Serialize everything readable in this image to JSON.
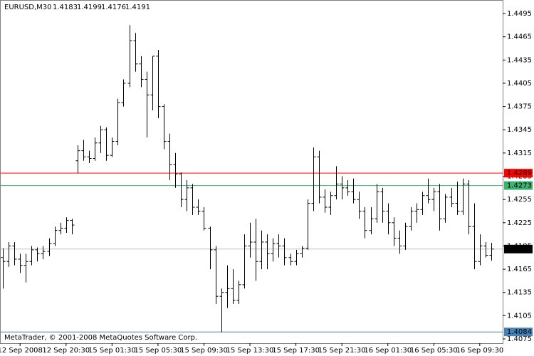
{
  "chart_data": {
    "type": "ohlc",
    "title": "EURUSD,M30",
    "footer": "MetaTrader, © 2001-2008 MetaQuotes Software Corp.",
    "bar_color": "#000000",
    "categories": [
      null,
      null,
      null,
      "12 Sep 2008",
      null,
      null,
      null,
      null,
      null,
      null,
      null,
      "12 Sep 20:30",
      null,
      null,
      null,
      null,
      null,
      null,
      null,
      "15 Sep 01:30",
      null,
      null,
      null,
      null,
      null,
      null,
      null,
      "15 Sep 05:30",
      null,
      null,
      null,
      null,
      null,
      null,
      null,
      "15 Sep 09:30",
      null,
      null,
      null,
      null,
      null,
      null,
      null,
      "15 Sep 13:30",
      null,
      null,
      null,
      null,
      null,
      null,
      null,
      "15 Sep 17:30",
      null,
      null,
      null,
      null,
      null,
      null,
      null,
      "15 Sep 21:30",
      null,
      null,
      null,
      null,
      null,
      null,
      null,
      "16 Sep 01:30",
      null,
      null,
      null,
      null,
      null,
      null,
      null,
      "16 Sep 05:30",
      null,
      null,
      null,
      null,
      null,
      null,
      null,
      "16 Sep 09:30",
      null,
      null
    ],
    "ohlc": [
      [
        1.418,
        1.4192,
        1.414,
        1.4175
      ],
      [
        1.4175,
        1.42,
        1.4168,
        1.4195
      ],
      [
        1.4195,
        1.42,
        1.417,
        1.4178
      ],
      [
        1.4178,
        1.4185,
        1.416,
        1.417
      ],
      [
        1.417,
        1.4185,
        1.4148,
        1.4175
      ],
      [
        1.4175,
        1.4195,
        1.417,
        1.419
      ],
      [
        1.419,
        1.4193,
        1.4175,
        1.4185
      ],
      [
        1.4185,
        1.4195,
        1.4178,
        1.4188
      ],
      [
        1.4188,
        1.4205,
        1.4182,
        1.4198
      ],
      [
        1.4198,
        1.422,
        1.4195,
        1.4215
      ],
      [
        1.4215,
        1.4225,
        1.421,
        1.4218
      ],
      [
        1.4218,
        1.4232,
        1.4212,
        1.4228
      ],
      [
        1.4228,
        1.423,
        1.421,
        1.4222
      ],
      [
        1.4305,
        1.4325,
        1.4289,
        1.4318
      ],
      [
        1.4318,
        1.4332,
        1.4305,
        1.431
      ],
      [
        1.431,
        1.4318,
        1.4302,
        1.4308
      ],
      [
        1.4308,
        1.4335,
        1.4305,
        1.4328
      ],
      [
        1.4328,
        1.435,
        1.4315,
        1.4345
      ],
      [
        1.4345,
        1.4348,
        1.4305,
        1.4312
      ],
      [
        1.4312,
        1.4335,
        1.431,
        1.433
      ],
      [
        1.433,
        1.4385,
        1.4325,
        1.438
      ],
      [
        1.438,
        1.441,
        1.4375,
        1.4405
      ],
      [
        1.4405,
        1.448,
        1.44,
        1.446
      ],
      [
        1.446,
        1.447,
        1.442,
        1.443
      ],
      [
        1.443,
        1.444,
        1.44,
        1.441
      ],
      [
        1.441,
        1.442,
        1.4335,
        1.439
      ],
      [
        1.439,
        1.444,
        1.437,
        1.444
      ],
      [
        1.444,
        1.4448,
        1.436,
        1.4375
      ],
      [
        1.4375,
        1.4378,
        1.432,
        1.433
      ],
      [
        1.433,
        1.434,
        1.428,
        1.43
      ],
      [
        1.43,
        1.4315,
        1.427,
        1.4288
      ],
      [
        1.4288,
        1.429,
        1.4245,
        1.4255
      ],
      [
        1.4255,
        1.428,
        1.424,
        1.427
      ],
      [
        1.427,
        1.4275,
        1.4235,
        1.4245
      ],
      [
        1.4245,
        1.4255,
        1.4235,
        1.424
      ],
      [
        1.424,
        1.4245,
        1.4215,
        1.4218
      ],
      [
        1.4218,
        1.422,
        1.4165,
        1.419
      ],
      [
        1.419,
        1.4195,
        1.412,
        1.413
      ],
      [
        1.413,
        1.414,
        1.4084,
        1.4135
      ],
      [
        1.4135,
        1.417,
        1.4115,
        1.414
      ],
      [
        1.414,
        1.4165,
        1.412,
        1.4125
      ],
      [
        1.4125,
        1.415,
        1.412,
        1.4145
      ],
      [
        1.4145,
        1.421,
        1.414,
        1.4195
      ],
      [
        1.4195,
        1.4225,
        1.418,
        1.42
      ],
      [
        1.42,
        1.423,
        1.415,
        1.4175
      ],
      [
        1.4175,
        1.4215,
        1.4165,
        1.42
      ],
      [
        1.42,
        1.421,
        1.4165,
        1.4185
      ],
      [
        1.4185,
        1.4205,
        1.4175,
        1.4198
      ],
      [
        1.4198,
        1.421,
        1.418,
        1.4195
      ],
      [
        1.4195,
        1.4205,
        1.417,
        1.418
      ],
      [
        1.418,
        1.4185,
        1.417,
        1.4175
      ],
      [
        1.4175,
        1.419,
        1.417,
        1.4185
      ],
      [
        1.4185,
        1.4195,
        1.418,
        1.4192
      ],
      [
        1.4192,
        1.4255,
        1.419,
        1.425
      ],
      [
        1.425,
        1.4322,
        1.424,
        1.431
      ],
      [
        1.431,
        1.4318,
        1.425,
        1.4258
      ],
      [
        1.4258,
        1.4268,
        1.4238,
        1.4245
      ],
      [
        1.4245,
        1.4265,
        1.4235,
        1.426
      ],
      [
        1.426,
        1.4298,
        1.4255,
        1.4275
      ],
      [
        1.4275,
        1.4285,
        1.4255,
        1.427
      ],
      [
        1.427,
        1.428,
        1.426,
        1.4265
      ],
      [
        1.4265,
        1.4282,
        1.425,
        1.4255
      ],
      [
        1.4255,
        1.4265,
        1.423,
        1.424
      ],
      [
        1.424,
        1.4245,
        1.4205,
        1.4215
      ],
      [
        1.4215,
        1.4245,
        1.421,
        1.423
      ],
      [
        1.423,
        1.4275,
        1.4225,
        1.4265
      ],
      [
        1.4265,
        1.427,
        1.4225,
        1.424
      ],
      [
        1.424,
        1.425,
        1.421,
        1.4225
      ],
      [
        1.4225,
        1.4232,
        1.4195,
        1.4205
      ],
      [
        1.4205,
        1.4215,
        1.4185,
        1.4195
      ],
      [
        1.4195,
        1.4225,
        1.419,
        1.422
      ],
      [
        1.422,
        1.4245,
        1.4215,
        1.424
      ],
      [
        1.424,
        1.425,
        1.4225,
        1.4242
      ],
      [
        1.4242,
        1.4265,
        1.4235,
        1.426
      ],
      [
        1.426,
        1.4282,
        1.425,
        1.4255
      ],
      [
        1.4255,
        1.427,
        1.424,
        1.4265
      ],
      [
        1.4265,
        1.4275,
        1.4215,
        1.423
      ],
      [
        1.423,
        1.4262,
        1.4225,
        1.4258
      ],
      [
        1.4258,
        1.427,
        1.4245,
        1.425
      ],
      [
        1.425,
        1.4278,
        1.4235,
        1.424
      ],
      [
        1.424,
        1.4282,
        1.4235,
        1.4275
      ],
      [
        1.4275,
        1.428,
        1.421,
        1.422
      ],
      [
        1.422,
        1.425,
        1.4165,
        1.4175
      ],
      [
        1.4175,
        1.421,
        1.417,
        1.4195
      ],
      [
        1.4195,
        1.42,
        1.418,
        1.4183
      ],
      [
        1.4183,
        1.4199,
        1.4176,
        1.4191
      ]
    ],
    "ylim": [
      1.40695,
      1.45125
    ],
    "yticks": [
      1.4495,
      1.4465,
      1.4435,
      1.4405,
      1.4375,
      1.4345,
      1.4315,
      1.4285,
      1.4255,
      1.4225,
      1.4195,
      1.4165,
      1.4135,
      1.4105,
      1.4075
    ],
    "levels": [
      {
        "value": 1.4289,
        "color": "#ff0000",
        "label_color": "#ff0000"
      },
      {
        "value": 1.4273,
        "color": "#3cb371",
        "label_color": "#3cb371"
      },
      {
        "value": 1.4191,
        "color": "#c0c0c0",
        "label_color": "#000000"
      },
      {
        "value": 1.4084,
        "color": "#4682b4",
        "label_color": "#4682b4"
      }
    ]
  }
}
